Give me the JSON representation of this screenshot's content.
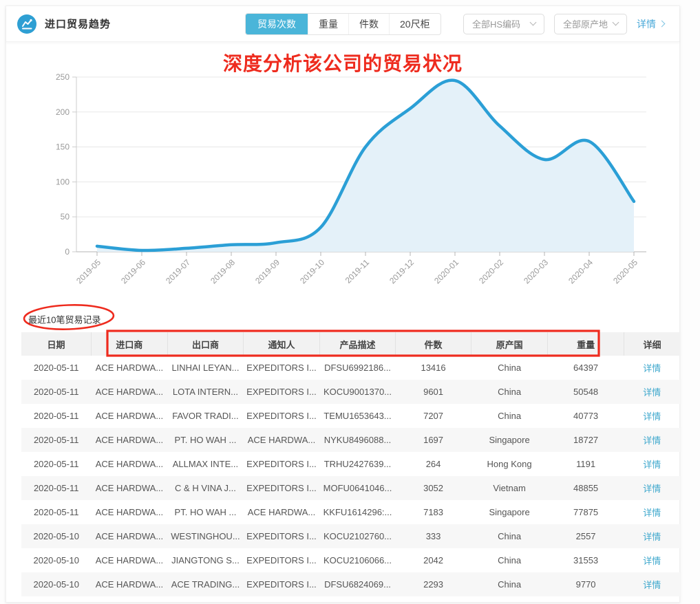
{
  "header": {
    "title": "进口贸易趋势",
    "tabs": [
      {
        "label": "贸易次数",
        "active": true
      },
      {
        "label": "重量",
        "active": false
      },
      {
        "label": "件数",
        "active": false
      },
      {
        "label": "20尺柜",
        "active": false
      }
    ],
    "filters": [
      {
        "label": "全部HS编码"
      },
      {
        "label": "全部原产地"
      }
    ],
    "detail_link": "详情"
  },
  "annotations": {
    "title_note": "深度分析该公司的贸易状况",
    "color": "#ee2b1e"
  },
  "chart_data": {
    "type": "area",
    "title": "",
    "xlabel": "",
    "ylabel": "",
    "x": [
      "2019-05",
      "2019-06",
      "2019-07",
      "2019-08",
      "2019-09",
      "2019-10",
      "2019-11",
      "2019-12",
      "2020-01",
      "2020-02",
      "2020-03",
      "2020-04",
      "2020-05"
    ],
    "values": [
      8,
      2,
      5,
      10,
      13,
      35,
      150,
      205,
      245,
      180,
      132,
      158,
      72
    ],
    "ylim": [
      0,
      250
    ],
    "yticks": [
      0,
      50,
      100,
      150,
      200,
      250
    ],
    "grid": true,
    "legend": "none",
    "line_color": "#2b9fd6",
    "fill_color": "#e4f1f9"
  },
  "records": {
    "section_label": "最近10笔贸易记录",
    "columns": [
      "日期",
      "进口商",
      "出口商",
      "通知人",
      "产品描述",
      "件数",
      "原产国",
      "重量",
      "详细"
    ],
    "detail_label": "详情",
    "rows": [
      {
        "date": "2020-05-11",
        "importer": "ACE HARDWA...",
        "exporter": "LINHAI LEYAN...",
        "notify": "EXPEDITORS I...",
        "product": "DFSU6992186...",
        "qty": "13416",
        "origin": "China",
        "weight": "64397"
      },
      {
        "date": "2020-05-11",
        "importer": "ACE HARDWA...",
        "exporter": "LOTA INTERN...",
        "notify": "EXPEDITORS I...",
        "product": "KOCU9001370...",
        "qty": "9601",
        "origin": "China",
        "weight": "50548"
      },
      {
        "date": "2020-05-11",
        "importer": "ACE HARDWA...",
        "exporter": "FAVOR TRADI...",
        "notify": "EXPEDITORS I...",
        "product": "TEMU1653643...",
        "qty": "7207",
        "origin": "China",
        "weight": "40773"
      },
      {
        "date": "2020-05-11",
        "importer": "ACE HARDWA...",
        "exporter": "PT. HO WAH ...",
        "notify": "ACE HARDWA...",
        "product": "NYKU8496088...",
        "qty": "1697",
        "origin": "Singapore",
        "weight": "18727"
      },
      {
        "date": "2020-05-11",
        "importer": "ACE HARDWA...",
        "exporter": "ALLMAX INTE...",
        "notify": "EXPEDITORS I...",
        "product": "TRHU2427639...",
        "qty": "264",
        "origin": "Hong Kong",
        "weight": "1191"
      },
      {
        "date": "2020-05-11",
        "importer": "ACE HARDWA...",
        "exporter": "C & H VINA J...",
        "notify": "EXPEDITORS I...",
        "product": "MOFU0641046...",
        "qty": "3052",
        "origin": "Vietnam",
        "weight": "48855"
      },
      {
        "date": "2020-05-11",
        "importer": "ACE HARDWA...",
        "exporter": "PT. HO WAH ...",
        "notify": "ACE HARDWA...",
        "product": "KKFU1614296:...",
        "qty": "7183",
        "origin": "Singapore",
        "weight": "77875"
      },
      {
        "date": "2020-05-10",
        "importer": "ACE HARDWA...",
        "exporter": "WESTINGHOU...",
        "notify": "EXPEDITORS I...",
        "product": "KOCU2102760...",
        "qty": "333",
        "origin": "China",
        "weight": "2557"
      },
      {
        "date": "2020-05-10",
        "importer": "ACE HARDWA...",
        "exporter": "JIANGTONG S...",
        "notify": "EXPEDITORS I...",
        "product": "KOCU2106066...",
        "qty": "2042",
        "origin": "China",
        "weight": "31553"
      },
      {
        "date": "2020-05-10",
        "importer": "ACE HARDWA...",
        "exporter": "ACE TRADING...",
        "notify": "EXPEDITORS I...",
        "product": "DFSU6824069...",
        "qty": "2293",
        "origin": "China",
        "weight": "9770"
      }
    ]
  }
}
